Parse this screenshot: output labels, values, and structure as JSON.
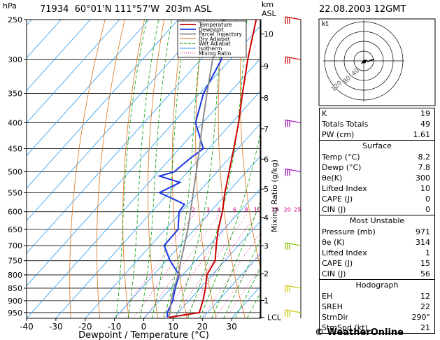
{
  "header": {
    "station": "71934",
    "lat": "60°01'N",
    "lon": "111°57'W",
    "elevation": "203m ASL",
    "datetime": "22.08.2003 12GMT"
  },
  "units": {
    "pressure": "hPa",
    "km_label": "km",
    "asl_label": "ASL",
    "lcl_label": "LCL",
    "mixing_axis": "Mixing Ratio (g/kg)",
    "hodo_unit": "kt"
  },
  "chart_data": {
    "type": "line",
    "xlabel": "Dewpoint / Temperature (°C)",
    "ylabel": "hPa",
    "xlim": [
      -40,
      40
    ],
    "ylim": [
      975,
      250
    ],
    "x_ticks": [
      -40,
      -30,
      -20,
      -10,
      0,
      10,
      20,
      30
    ],
    "y_ticks": [
      250,
      300,
      350,
      400,
      450,
      500,
      550,
      600,
      650,
      700,
      750,
      800,
      850,
      900,
      950
    ],
    "km_ticks": [
      {
        "km": 10,
        "p": 267
      },
      {
        "km": 9,
        "p": 309
      },
      {
        "km": 8,
        "p": 357
      },
      {
        "km": 7,
        "p": 411
      },
      {
        "km": 6,
        "p": 472
      },
      {
        "km": 5,
        "p": 541
      },
      {
        "km": 4,
        "p": 616
      },
      {
        "km": 3,
        "p": 701
      },
      {
        "km": 2,
        "p": 795
      },
      {
        "km": 1,
        "p": 899
      }
    ],
    "mixing_ratio_labels": [
      2,
      3,
      4,
      6,
      8,
      10,
      15,
      20,
      25
    ],
    "legend": [
      "Temperature",
      "Dewpoint",
      "Parcel Trajectory",
      "Dry Adiabat",
      "Wet Adiabat",
      "Isotherm",
      "Mixing Ratio"
    ],
    "legend_colors": [
      "#cc0000",
      "#1a33e6",
      "#8c8c8c",
      "#d9731a",
      "#00a000",
      "#2b9cf0",
      "#d4007a"
    ],
    "series": [
      {
        "name": "Temperature",
        "color": "#cc0000",
        "points": [
          [
            971,
            8.2
          ],
          [
            950,
            17.2
          ],
          [
            900,
            14.8
          ],
          [
            850,
            11.8
          ],
          [
            800,
            8.2
          ],
          [
            750,
            6.7
          ],
          [
            700,
            2.4
          ],
          [
            650,
            -1.9
          ],
          [
            600,
            -5.9
          ],
          [
            550,
            -10.9
          ],
          [
            500,
            -15.9
          ],
          [
            450,
            -21.4
          ],
          [
            400,
            -27.7
          ],
          [
            350,
            -35.4
          ],
          [
            300,
            -44.0
          ],
          [
            250,
            -53.4
          ]
        ]
      },
      {
        "name": "Dewpoint",
        "color": "#1a33e6",
        "points": [
          [
            971,
            7.8
          ],
          [
            950,
            6.3
          ],
          [
            900,
            4.5
          ],
          [
            850,
            1.5
          ],
          [
            800,
            -1.3
          ],
          [
            750,
            -8.7
          ],
          [
            700,
            -15.4
          ],
          [
            650,
            -15.6
          ],
          [
            600,
            -20.7
          ],
          [
            580,
            -21.1
          ],
          [
            550,
            -33.2
          ],
          [
            525,
            -29.4
          ],
          [
            510,
            -38.3
          ],
          [
            500,
            -34.6
          ],
          [
            470,
            -33.3
          ],
          [
            450,
            -31.8
          ],
          [
            400,
            -42.4
          ],
          [
            350,
            -48.7
          ],
          [
            300,
            -53.0
          ],
          [
            250,
            -64.3
          ]
        ]
      },
      {
        "name": "Parcel Trajectory",
        "color": "#8c8c8c",
        "points": [
          [
            971,
            8.2
          ],
          [
            950,
            7.2
          ],
          [
            900,
            3.9
          ],
          [
            850,
            1.1
          ],
          [
            800,
            -1.6
          ],
          [
            750,
            -5.0
          ],
          [
            700,
            -8.5
          ],
          [
            650,
            -12.3
          ],
          [
            600,
            -16.8
          ],
          [
            550,
            -21.7
          ],
          [
            500,
            -27.1
          ],
          [
            450,
            -33.1
          ],
          [
            400,
            -40.0
          ],
          [
            350,
            -47.5
          ],
          [
            300,
            -56.0
          ],
          [
            250,
            -65.0
          ]
        ]
      }
    ]
  },
  "indices": {
    "rows": [
      {
        "label": "K",
        "value": "19"
      },
      {
        "label": "Totals Totals",
        "value": "49"
      },
      {
        "label": "PW (cm)",
        "value": "1.61"
      }
    ],
    "surface": {
      "title": "Surface",
      "rows": [
        {
          "label": "Temp (°C)",
          "value": "8.2"
        },
        {
          "label": "Dewp (°C)",
          "value": "7.8"
        },
        {
          "label": "θe(K)",
          "value": "300"
        },
        {
          "label": "Lifted Index",
          "value": "10"
        },
        {
          "label": "CAPE (J)",
          "value": "0"
        },
        {
          "label": "CIN (J)",
          "value": "0"
        }
      ]
    },
    "unstable": {
      "title": "Most Unstable",
      "rows": [
        {
          "label": "Pressure (mb)",
          "value": "971"
        },
        {
          "label": "θe (K)",
          "value": "314"
        },
        {
          "label": "Lifted Index",
          "value": "1"
        },
        {
          "label": "CAPE (J)",
          "value": "15"
        },
        {
          "label": "CIN (J)",
          "value": "56"
        }
      ]
    },
    "hodograph": {
      "title": "Hodograph",
      "rows": [
        {
          "label": "EH",
          "value": "12"
        },
        {
          "label": "SREH",
          "value": "22"
        },
        {
          "label": "StmDir",
          "value": "290°"
        },
        {
          "label": "StmSpd (kt)",
          "value": "21"
        }
      ]
    }
  },
  "hodograph_ring_labels": [
    "40",
    "80",
    "120"
  ],
  "brand": "© WeatherOnline",
  "colors": {
    "temperature": "#cc0000",
    "dewpoint": "#1a33e6",
    "parcel": "#8c8c8c",
    "dry_adiabat": "#d9731a",
    "wet_adiabat": "#00a000",
    "isotherm": "#2b9cf0",
    "mixing_ratio": "#d4007a",
    "wind_high": "#cc0000",
    "wind_mid": "#9a00b8",
    "wind_low": "#80c000",
    "wind_sfc": "#c8c800"
  },
  "winds": [
    {
      "level": "250",
      "color_key": "wind_high"
    },
    {
      "level": "300",
      "color_key": "wind_high"
    },
    {
      "level": "400",
      "color_key": "wind_mid"
    },
    {
      "level": "500",
      "color_key": "wind_mid"
    },
    {
      "level": "700",
      "color_key": "wind_low"
    },
    {
      "level": "850",
      "color_key": "wind_sfc"
    },
    {
      "level": "950",
      "color_key": "wind_sfc"
    }
  ]
}
